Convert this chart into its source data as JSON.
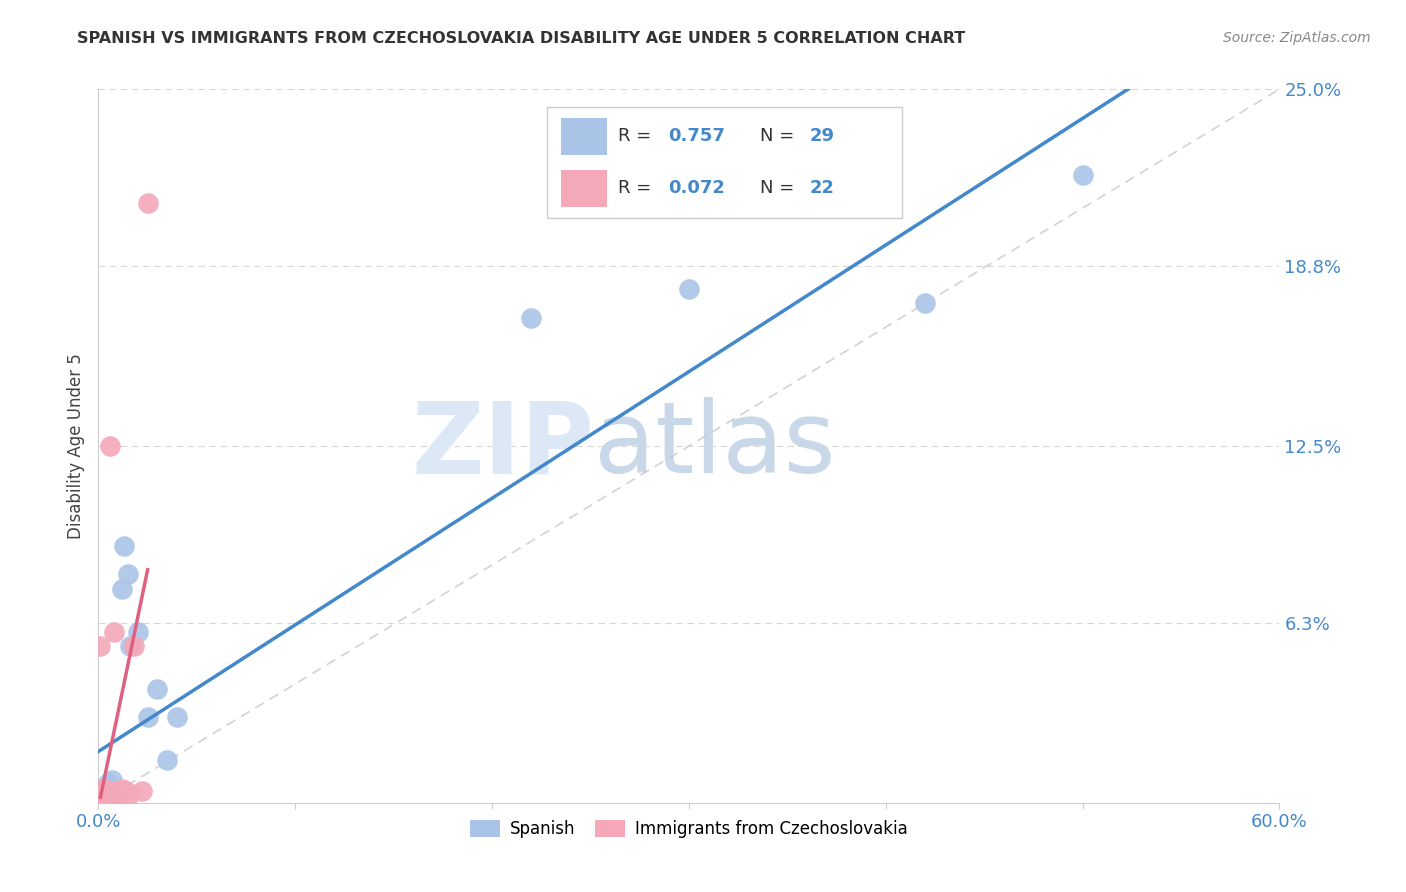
{
  "title": "SPANISH VS IMMIGRANTS FROM CZECHOSLOVAKIA DISABILITY AGE UNDER 5 CORRELATION CHART",
  "source": "Source: ZipAtlas.com",
  "ylabel": "Disability Age Under 5",
  "xlim": [
    0.0,
    0.6
  ],
  "ylim": [
    0.0,
    0.25
  ],
  "R_blue": 0.757,
  "N_blue": 29,
  "R_pink": 0.072,
  "N_pink": 22,
  "blue_color": "#aac4e8",
  "pink_color": "#f4a8b8",
  "blue_line_color": "#4488cc",
  "pink_line_color": "#e06080",
  "dashed_line_color": "#c8c8c8",
  "watermark_zip": "ZIP",
  "watermark_atlas": "atlas",
  "spanish_x": [
    0.001,
    0.002,
    0.002,
    0.003,
    0.003,
    0.003,
    0.004,
    0.004,
    0.005,
    0.005,
    0.006,
    0.007,
    0.008,
    0.008,
    0.009,
    0.01,
    0.012,
    0.013,
    0.015,
    0.016,
    0.02,
    0.025,
    0.03,
    0.035,
    0.04,
    0.22,
    0.3,
    0.42,
    0.5
  ],
  "spanish_y": [
    0.003,
    0.002,
    0.005,
    0.003,
    0.005,
    0.004,
    0.003,
    0.006,
    0.004,
    0.007,
    0.003,
    0.008,
    0.005,
    0.003,
    0.004,
    0.002,
    0.075,
    0.09,
    0.08,
    0.055,
    0.06,
    0.03,
    0.04,
    0.015,
    0.03,
    0.17,
    0.18,
    0.175,
    0.22
  ],
  "czech_x": [
    0.001,
    0.001,
    0.002,
    0.002,
    0.003,
    0.003,
    0.003,
    0.004,
    0.004,
    0.005,
    0.005,
    0.006,
    0.007,
    0.008,
    0.009,
    0.01,
    0.012,
    0.014,
    0.016,
    0.018,
    0.022,
    0.025
  ],
  "czech_y": [
    0.003,
    0.055,
    0.004,
    0.003,
    0.003,
    0.004,
    0.005,
    0.003,
    0.004,
    0.003,
    0.004,
    0.125,
    0.003,
    0.06,
    0.004,
    0.003,
    0.005,
    0.004,
    0.003,
    0.055,
    0.004,
    0.21
  ]
}
